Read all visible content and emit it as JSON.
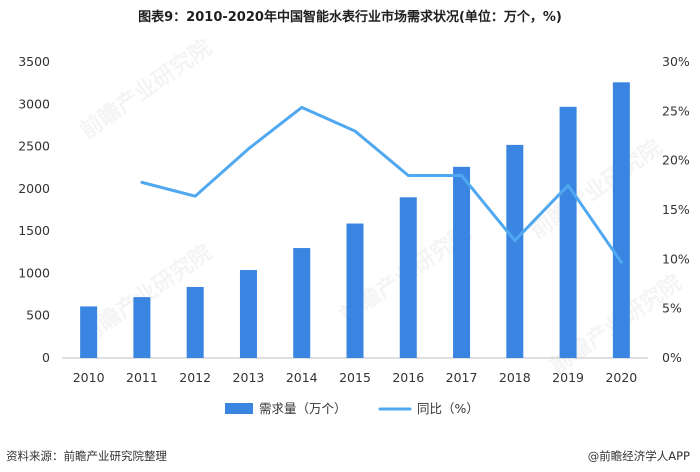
{
  "title": "图表9：2010-2020年中国智能水表行业市场需求状况(单位：万个，%)",
  "chart_data": {
    "type": "bar+line",
    "categories": [
      "2010",
      "2011",
      "2012",
      "2013",
      "2014",
      "2015",
      "2016",
      "2017",
      "2018",
      "2019",
      "2020"
    ],
    "series": [
      {
        "name": "需求量（万个）",
        "type": "bar",
        "axis": "left",
        "color": "#3A85E1",
        "values": [
          610,
          720,
          840,
          1040,
          1300,
          1590,
          1900,
          2260,
          2520,
          2970,
          3260
        ]
      },
      {
        "name": "同比（%）",
        "type": "line",
        "axis": "right",
        "color": "#4FA8F0",
        "values": [
          null,
          17.8,
          16.4,
          21.2,
          25.4,
          23.0,
          18.5,
          18.5,
          11.9,
          17.5,
          9.7
        ]
      }
    ],
    "y_left": {
      "min": 0,
      "max": 3500,
      "ticks": [
        0,
        500,
        1000,
        1500,
        2000,
        2500,
        3000,
        3500
      ]
    },
    "y_right": {
      "min": 0,
      "max": 30,
      "ticks": [
        "0%",
        "5%",
        "10%",
        "15%",
        "20%",
        "25%",
        "30%"
      ]
    },
    "legend_position": "bottom",
    "grid": false
  },
  "source_left": "资料来源：前瞻产业研究院整理",
  "source_right": "@前瞻经济学人APP",
  "watermark": "前瞻产业研究院"
}
